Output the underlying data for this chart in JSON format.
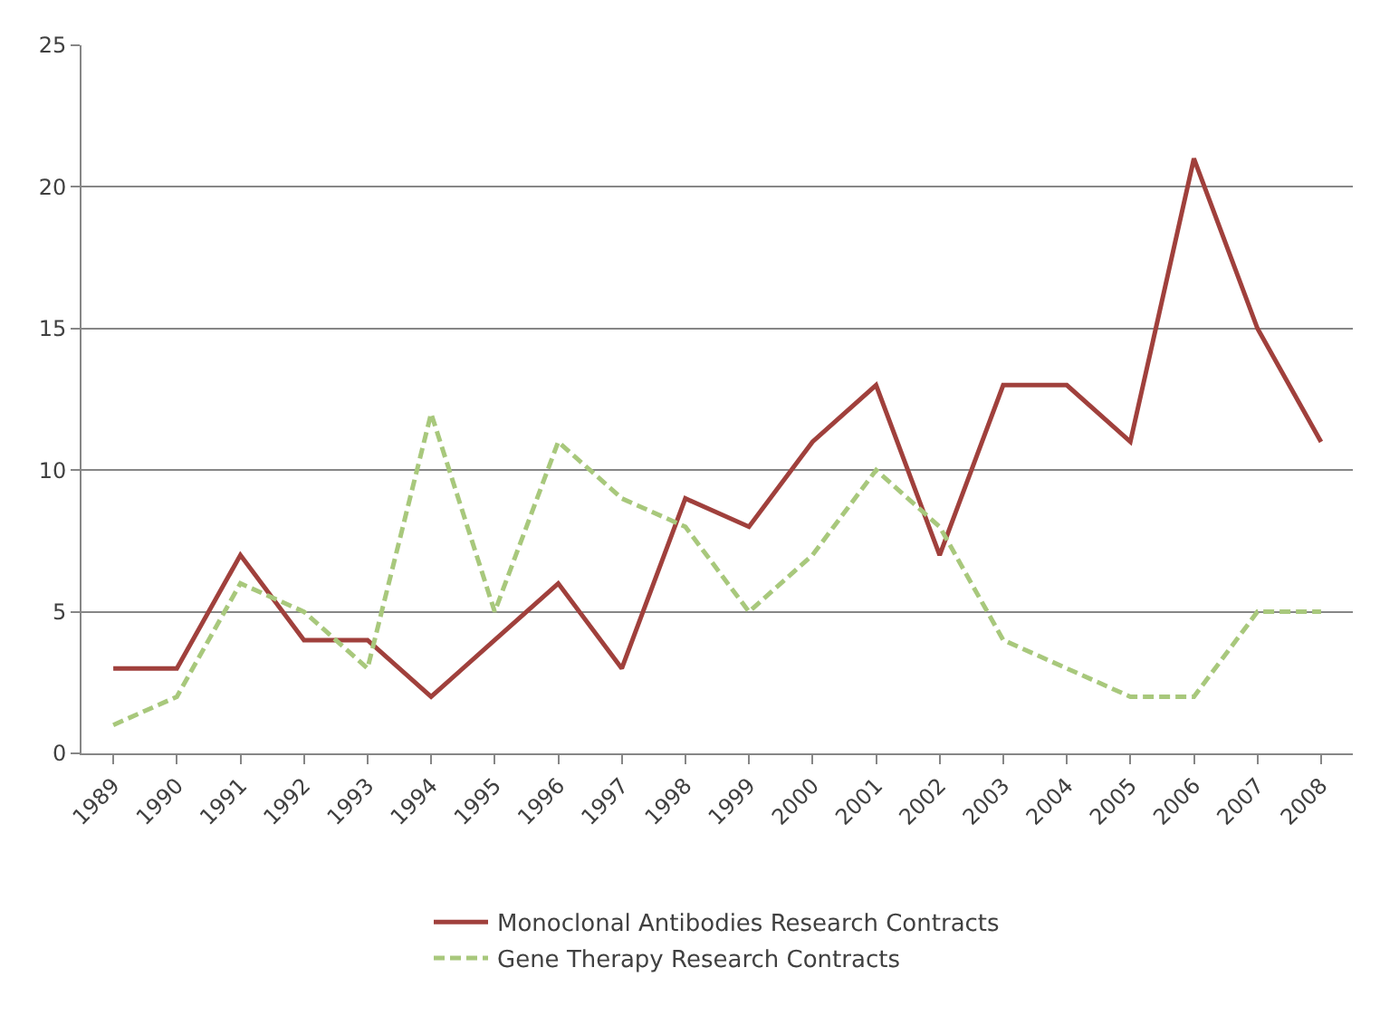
{
  "chart_data": {
    "type": "line",
    "categories": [
      "1989",
      "1990",
      "1991",
      "1992",
      "1993",
      "1994",
      "1995",
      "1996",
      "1997",
      "1998",
      "1999",
      "2000",
      "2001",
      "2002",
      "2003",
      "2004",
      "2005",
      "2006",
      "2007",
      "2008"
    ],
    "series": [
      {
        "name": "Monoclonal Antibodies Research Contracts",
        "color": "#a0403c",
        "line_style": "solid",
        "values": [
          3,
          3,
          7,
          4,
          4,
          2,
          4,
          6,
          3,
          9,
          8,
          11,
          13,
          7,
          13,
          13,
          11,
          21,
          15,
          11
        ]
      },
      {
        "name": "Gene Therapy Research Contracts",
        "color": "#a8c87c",
        "line_style": "dashed",
        "values": [
          1,
          2,
          6,
          5,
          3,
          12,
          5,
          11,
          9,
          8,
          5,
          7,
          10,
          8,
          4,
          3,
          2,
          2,
          5,
          5
        ]
      }
    ],
    "ylim": [
      0,
      25
    ],
    "yticks": [
      0,
      5,
      10,
      15,
      20,
      25
    ],
    "grid": "y",
    "legend": "bottom",
    "marker": "none"
  }
}
